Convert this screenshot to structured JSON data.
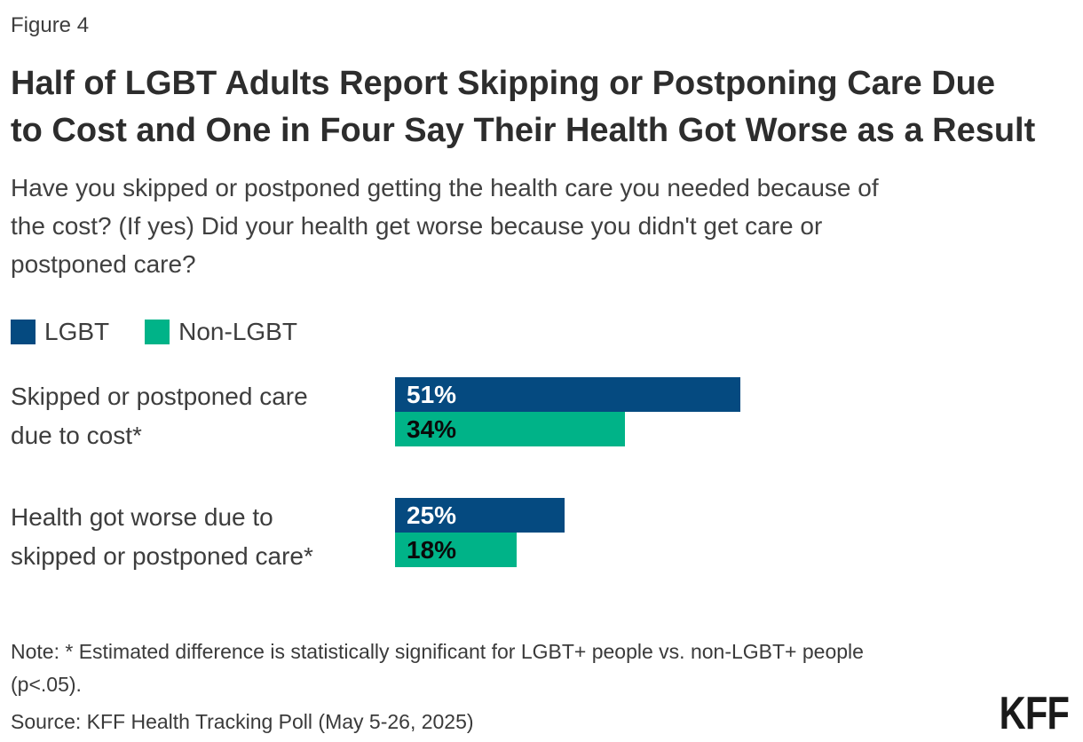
{
  "header": {
    "figure_label": "Figure 4",
    "title_lines": [
      "Half of LGBT Adults Report Skipping or Postponing Care Due",
      "to Cost and One in Four Say Their Health Got Worse as a Result"
    ],
    "subtitle_lines": [
      "Have you skipped or postponed getting the health care you needed because of",
      "the cost? (If yes) Did your health get worse because you didn't get care or",
      "postponed care?"
    ]
  },
  "chart_data": {
    "type": "bar",
    "orientation": "horizontal",
    "title": "Half of LGBT Adults Report Skipping or Postponing Care Due to Cost and One in Four Say Their Health Got Worse as a Result",
    "subtitle": "Have you skipped or postponed getting the health care you needed because of the cost? (If yes) Did your health get worse because you didn't get care or postponed care?",
    "categories": [
      "Skipped or postponed care due to cost*",
      "Health got worse due to skipped or postponed care*"
    ],
    "categories_lines": [
      [
        "Skipped or postponed care",
        "due to cost*"
      ],
      [
        "Health got worse due to",
        "skipped or postponed care*"
      ]
    ],
    "series": [
      {
        "name": "LGBT",
        "color": "#054a80",
        "values": [
          51,
          25
        ]
      },
      {
        "name": "Non-LGBT",
        "color": "#00b388",
        "values": [
          34,
          18
        ]
      }
    ],
    "bar_labels": [
      [
        "51%",
        "34%"
      ],
      [
        "25%",
        "18%"
      ]
    ],
    "value_unit": "percent",
    "xlim": [
      0,
      100
    ],
    "legend_position": "top-left",
    "grid": false
  },
  "footer": {
    "note_lines": [
      "Note: * Estimated difference is statistically significant for LGBT+ people vs. non-LGBT+ people",
      "(p<.05)."
    ],
    "source": "Source: KFF Health Tracking Poll (May 5-26, 2025)",
    "logo": "KFF"
  },
  "colors": {
    "lgbt_blue": "#054a80",
    "non_lgbt_green": "#00b388",
    "title_text": "#2d2d2d",
    "body_text": "#404040"
  }
}
